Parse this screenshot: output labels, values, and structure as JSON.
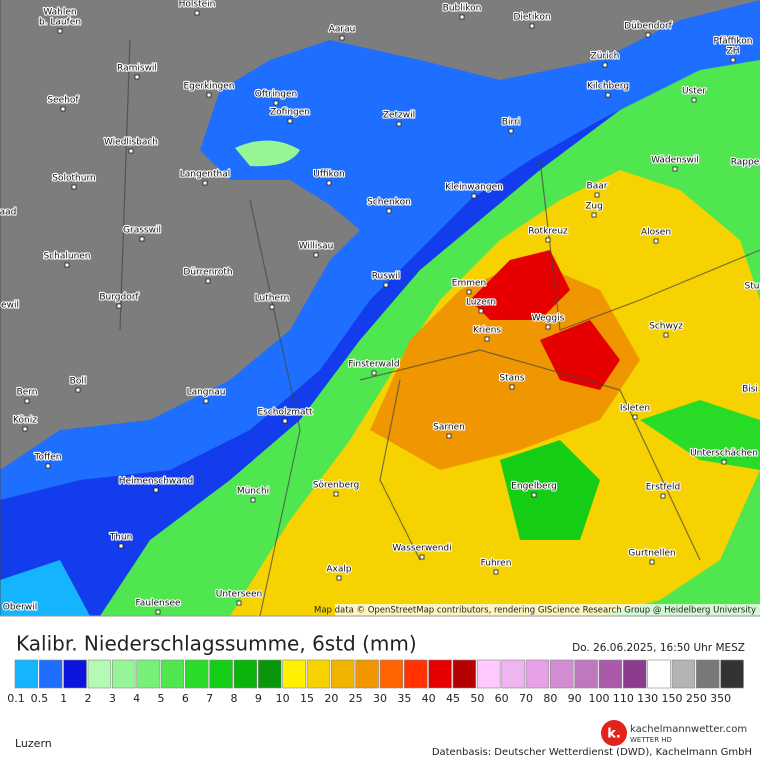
{
  "map": {
    "places": [
      {
        "name": "Holstein"
      },
      {
        "name": "Bublikon"
      },
      {
        "name": "Dietikon"
      },
      {
        "name": "Dübendorf"
      },
      {
        "name": "Wahlen"
      },
      {
        "name": "b. Laufen"
      },
      {
        "name": "Aarau"
      },
      {
        "name": "Zürich"
      },
      {
        "name": "Pfäffikon"
      },
      {
        "name": "ZH"
      },
      {
        "name": "Ramiswil"
      },
      {
        "name": "Egerkingen"
      },
      {
        "name": "Oftringen"
      },
      {
        "name": "Uster"
      },
      {
        "name": "Kilchberg"
      },
      {
        "name": "Seehof"
      },
      {
        "name": "Zofingen"
      },
      {
        "name": "Zetzwil"
      },
      {
        "name": "Birri"
      },
      {
        "name": "Wiedlisbach"
      },
      {
        "name": "Wädenswil"
      },
      {
        "name": "Rappe"
      },
      {
        "name": "Langenthal"
      },
      {
        "name": "Uffikon"
      },
      {
        "name": "Solothurn"
      },
      {
        "name": "Baar"
      },
      {
        "name": "Kleinwangen"
      },
      {
        "name": "Schenkon"
      },
      {
        "name": "Zug"
      },
      {
        "name": "aad"
      },
      {
        "name": "Grasswil"
      },
      {
        "name": "Rotkreuz"
      },
      {
        "name": "Alosen"
      },
      {
        "name": "Willisau"
      },
      {
        "name": "Schalunen"
      },
      {
        "name": "Dürrenroth"
      },
      {
        "name": "Ruswil"
      },
      {
        "name": "Emmen"
      },
      {
        "name": "Stu"
      },
      {
        "name": "Luthern"
      },
      {
        "name": "Burgdorf"
      },
      {
        "name": "Luzern"
      },
      {
        "name": "ewil"
      },
      {
        "name": "Weggis"
      },
      {
        "name": "Schwyz"
      },
      {
        "name": "Kriens"
      },
      {
        "name": "Finsterwald"
      },
      {
        "name": "Stans"
      },
      {
        "name": "Boll"
      },
      {
        "name": "Bern"
      },
      {
        "name": "Bisi"
      },
      {
        "name": "Langnau"
      },
      {
        "name": "Isleten"
      },
      {
        "name": "Escholzmatt"
      },
      {
        "name": "Köniz"
      },
      {
        "name": "Sarnen"
      },
      {
        "name": "Unterschächen"
      },
      {
        "name": "Toffen"
      },
      {
        "name": "Heimenschwand"
      },
      {
        "name": "Sörenberg"
      },
      {
        "name": "Engelberg"
      },
      {
        "name": "Erstfeld"
      },
      {
        "name": "Münchi"
      },
      {
        "name": "Thun"
      },
      {
        "name": "Wasserwendi"
      },
      {
        "name": "Gurtnellen"
      },
      {
        "name": "Fuhren"
      },
      {
        "name": "Axalp"
      },
      {
        "name": "Unterseen"
      },
      {
        "name": "Faulensee"
      },
      {
        "name": "Oberwil"
      }
    ],
    "attribution": "Map data © OpenStreetMap contributors, rendering GIScience Research Group @ Heidelberg University"
  },
  "legend": {
    "title": "Kalibr. Niederschlagssumme, 6std (mm)",
    "timestamp": "Do. 26.06.2025, 16:50 Uhr MESZ",
    "ticks": [
      "0.1",
      "0.5",
      "1",
      "2",
      "3",
      "4",
      "5",
      "6",
      "7",
      "8",
      "9",
      "10",
      "15",
      "20",
      "25",
      "30",
      "35",
      "40",
      "45",
      "50",
      "60",
      "70",
      "80",
      "90",
      "100",
      "110",
      "130",
      "150",
      "250",
      "350"
    ],
    "colors": [
      "#14b4ff",
      "#1e6eff",
      "#0a14dc",
      "#b4fab4",
      "#96f596",
      "#78f078",
      "#50e650",
      "#28dc28",
      "#14cd14",
      "#0ab40a",
      "#0a960a",
      "#fff000",
      "#f5d200",
      "#f0b400",
      "#f09600",
      "#ff6400",
      "#ff3200",
      "#e60000",
      "#b40000",
      "#ffc8ff",
      "#f0b4f0",
      "#e6a0e6",
      "#d28cd2",
      "#be78be",
      "#aa5aaa",
      "#8c3c8c",
      "#ffffff",
      "#b4b4b4",
      "#787878",
      "#333333"
    ]
  },
  "footer": {
    "location": "Luzern",
    "brand": "kachelmannwetter.com",
    "brand_sub": "WETTER HD",
    "brand_letter": "k.",
    "source": "Datenbasis: Deutscher Wetterdienst (DWD), Kachelmann GmbH"
  }
}
